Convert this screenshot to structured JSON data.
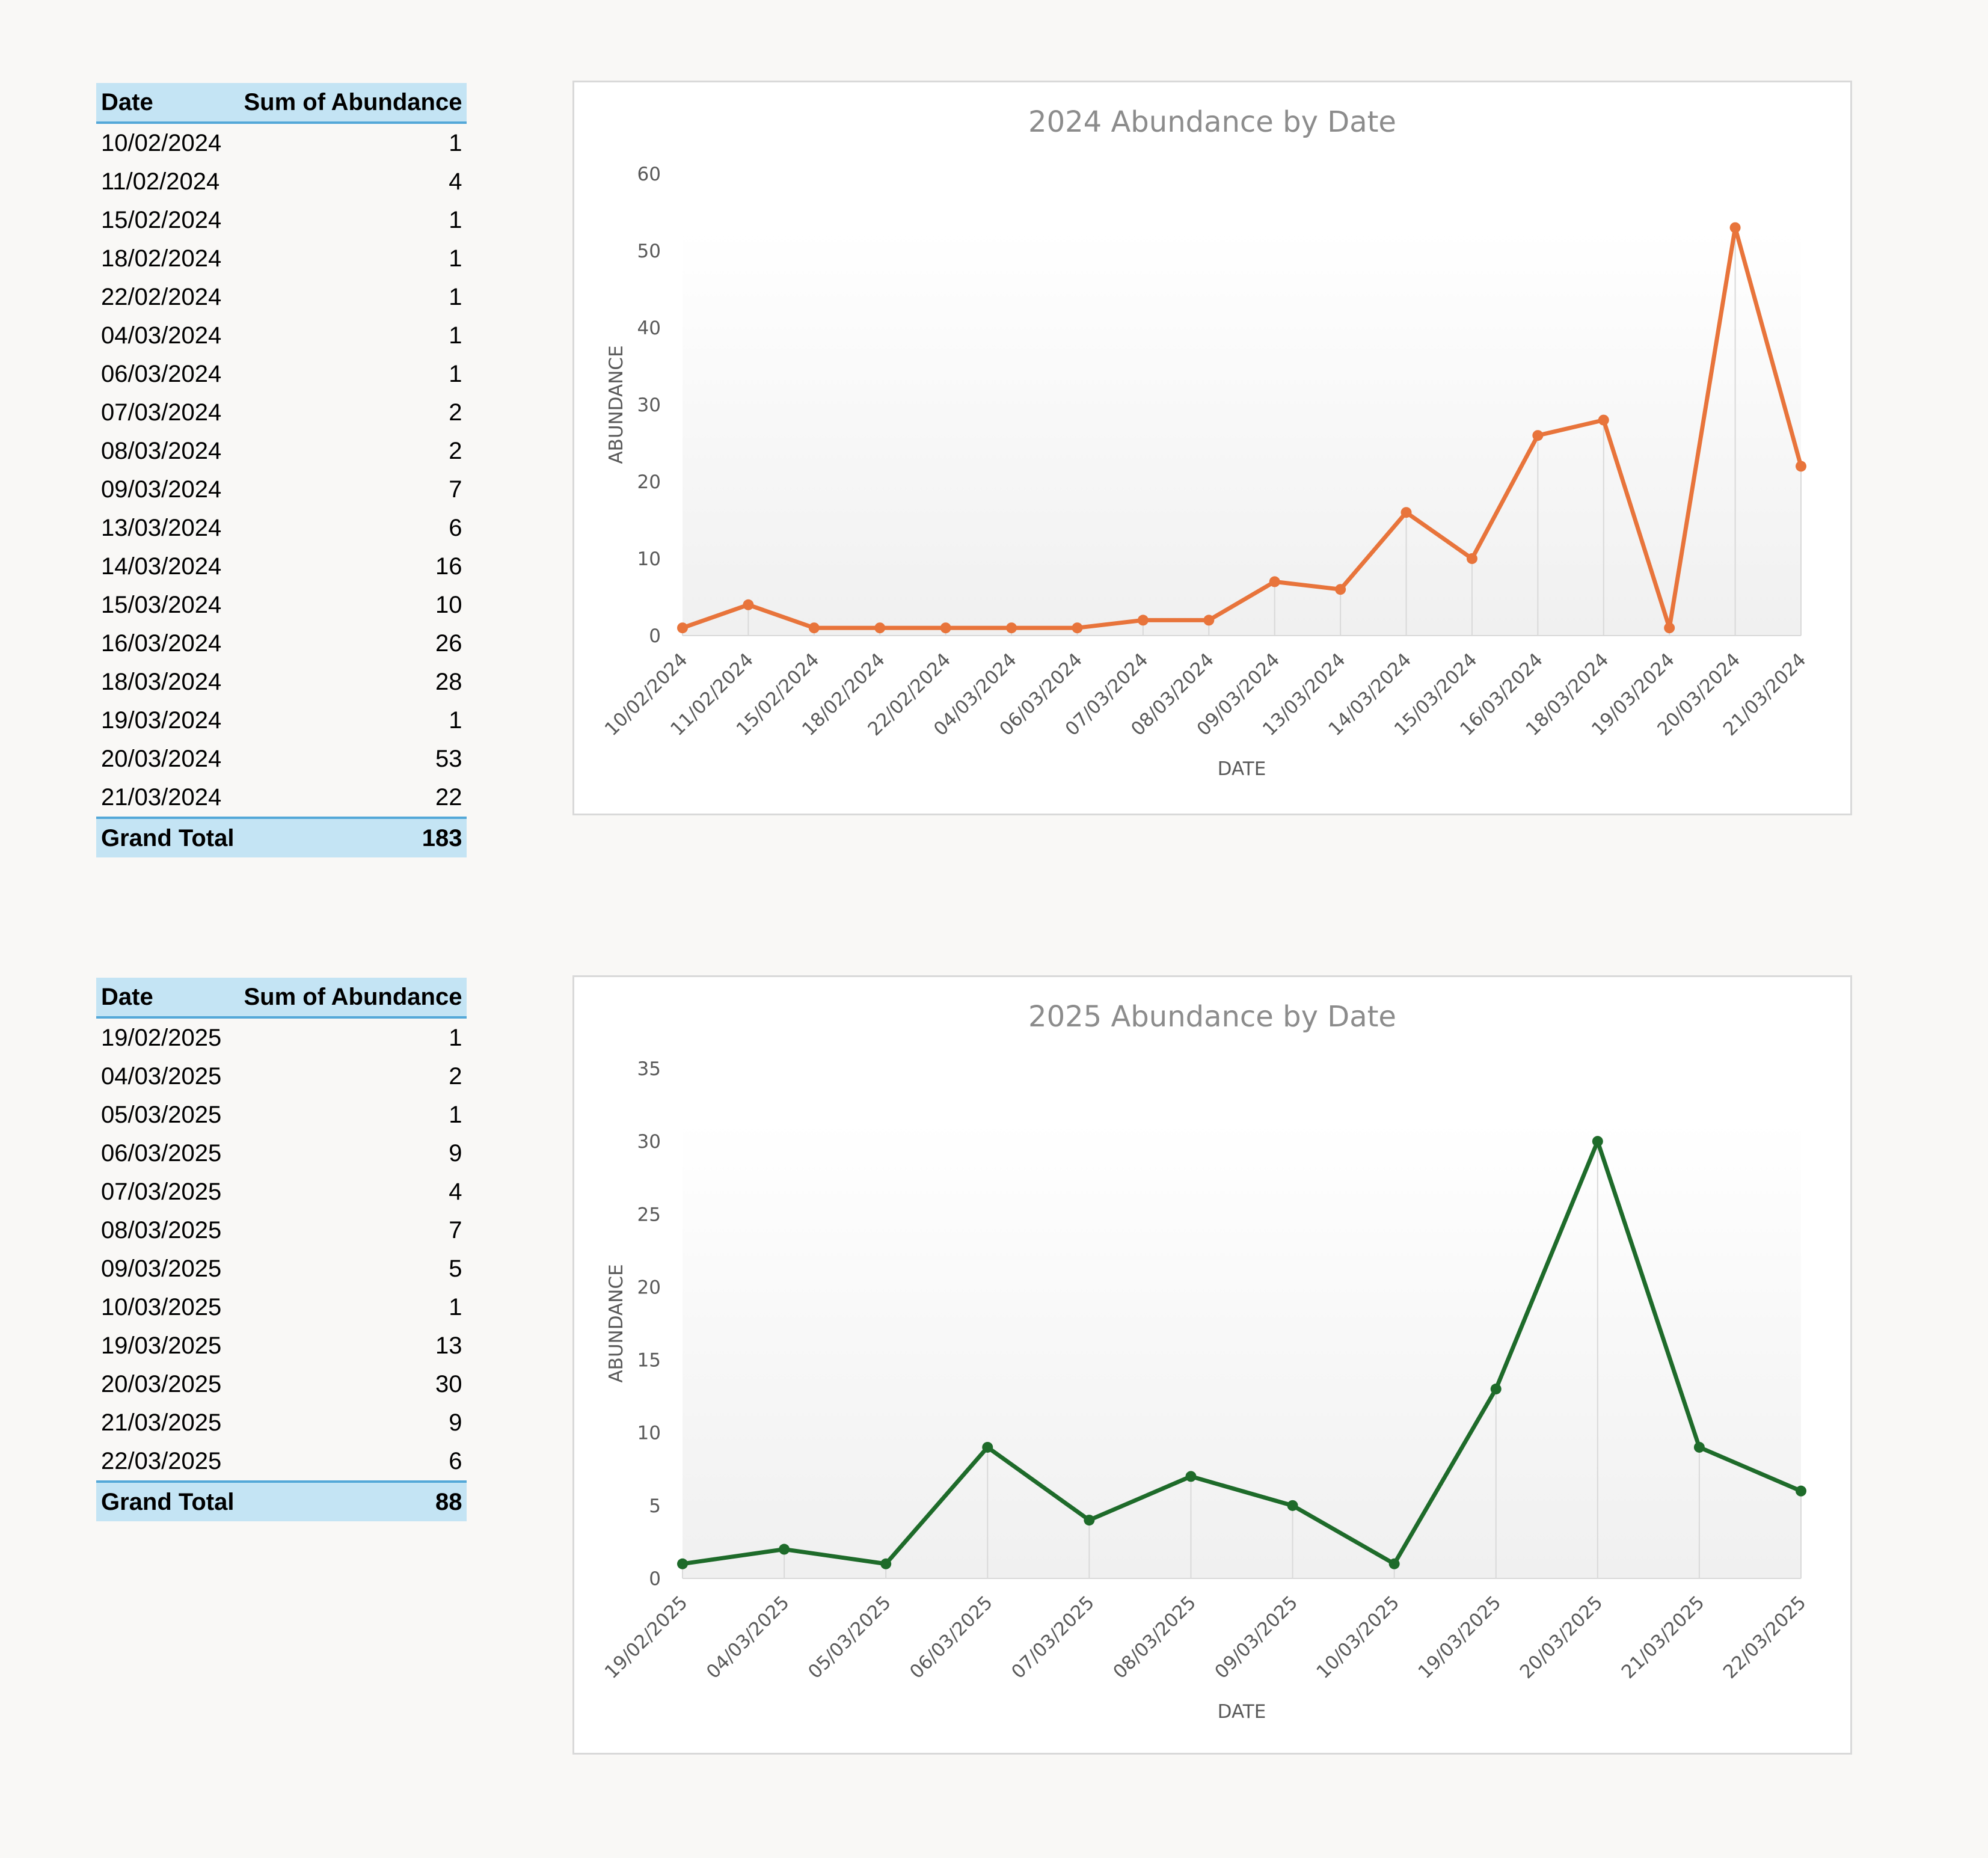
{
  "tables": [
    {
      "header": {
        "date": "Date",
        "sum": "Sum of Abundance"
      },
      "rows": [
        {
          "date": "10/02/2024",
          "value": "1"
        },
        {
          "date": "11/02/2024",
          "value": "4"
        },
        {
          "date": "15/02/2024",
          "value": "1"
        },
        {
          "date": "18/02/2024",
          "value": "1"
        },
        {
          "date": "22/02/2024",
          "value": "1"
        },
        {
          "date": "04/03/2024",
          "value": "1"
        },
        {
          "date": "06/03/2024",
          "value": "1"
        },
        {
          "date": "07/03/2024",
          "value": "2"
        },
        {
          "date": "08/03/2024",
          "value": "2"
        },
        {
          "date": "09/03/2024",
          "value": "7"
        },
        {
          "date": "13/03/2024",
          "value": "6"
        },
        {
          "date": "14/03/2024",
          "value": "16"
        },
        {
          "date": "15/03/2024",
          "value": "10"
        },
        {
          "date": "16/03/2024",
          "value": "26"
        },
        {
          "date": "18/03/2024",
          "value": "28"
        },
        {
          "date": "19/03/2024",
          "value": "1"
        },
        {
          "date": "20/03/2024",
          "value": "53"
        },
        {
          "date": "21/03/2024",
          "value": "22"
        }
      ],
      "total": {
        "label": "Grand Total",
        "value": "183"
      }
    },
    {
      "header": {
        "date": "Date",
        "sum": "Sum of Abundance"
      },
      "rows": [
        {
          "date": "19/02/2025",
          "value": "1"
        },
        {
          "date": "04/03/2025",
          "value": "2"
        },
        {
          "date": "05/03/2025",
          "value": "1"
        },
        {
          "date": "06/03/2025",
          "value": "9"
        },
        {
          "date": "07/03/2025",
          "value": "4"
        },
        {
          "date": "08/03/2025",
          "value": "7"
        },
        {
          "date": "09/03/2025",
          "value": "5"
        },
        {
          "date": "10/03/2025",
          "value": "1"
        },
        {
          "date": "19/03/2025",
          "value": "13"
        },
        {
          "date": "20/03/2025",
          "value": "30"
        },
        {
          "date": "21/03/2025",
          "value": "9"
        },
        {
          "date": "22/03/2025",
          "value": "6"
        }
      ],
      "total": {
        "label": "Grand Total",
        "value": "88"
      }
    }
  ],
  "chart_data": [
    {
      "type": "line",
      "title": "2024 Abundance by Date",
      "xlabel": "DATE",
      "ylabel": "ABUNDANCE",
      "ylim": [
        0,
        60
      ],
      "yticks": [
        0,
        10,
        20,
        30,
        40,
        50,
        60
      ],
      "categories": [
        "10/02/2024",
        "11/02/2024",
        "15/02/2024",
        "18/02/2024",
        "22/02/2024",
        "04/03/2024",
        "06/03/2024",
        "07/03/2024",
        "08/03/2024",
        "09/03/2024",
        "13/03/2024",
        "14/03/2024",
        "15/03/2024",
        "16/03/2024",
        "18/03/2024",
        "19/03/2024",
        "20/03/2024",
        "21/03/2024"
      ],
      "series": [
        {
          "values": [
            1,
            4,
            1,
            1,
            1,
            1,
            1,
            2,
            2,
            7,
            6,
            16,
            10,
            26,
            28,
            1,
            53,
            22
          ],
          "color": "#e8743b"
        }
      ],
      "grid": false,
      "drop_lines": true,
      "markers": true
    },
    {
      "type": "line",
      "title": "2025 Abundance by Date",
      "xlabel": "DATE",
      "ylabel": "ABUNDANCE",
      "ylim": [
        0,
        35
      ],
      "yticks": [
        0,
        5,
        10,
        15,
        20,
        25,
        30,
        35
      ],
      "categories": [
        "19/02/2025",
        "04/03/2025",
        "05/03/2025",
        "06/03/2025",
        "07/03/2025",
        "08/03/2025",
        "09/03/2025",
        "10/03/2025",
        "19/03/2025",
        "20/03/2025",
        "21/03/2025",
        "22/03/2025"
      ],
      "series": [
        {
          "values": [
            1,
            2,
            1,
            9,
            4,
            7,
            5,
            1,
            13,
            30,
            9,
            6
          ],
          "color": "#1e6b2a"
        }
      ],
      "grid": false,
      "drop_lines": true,
      "markers": true
    }
  ]
}
